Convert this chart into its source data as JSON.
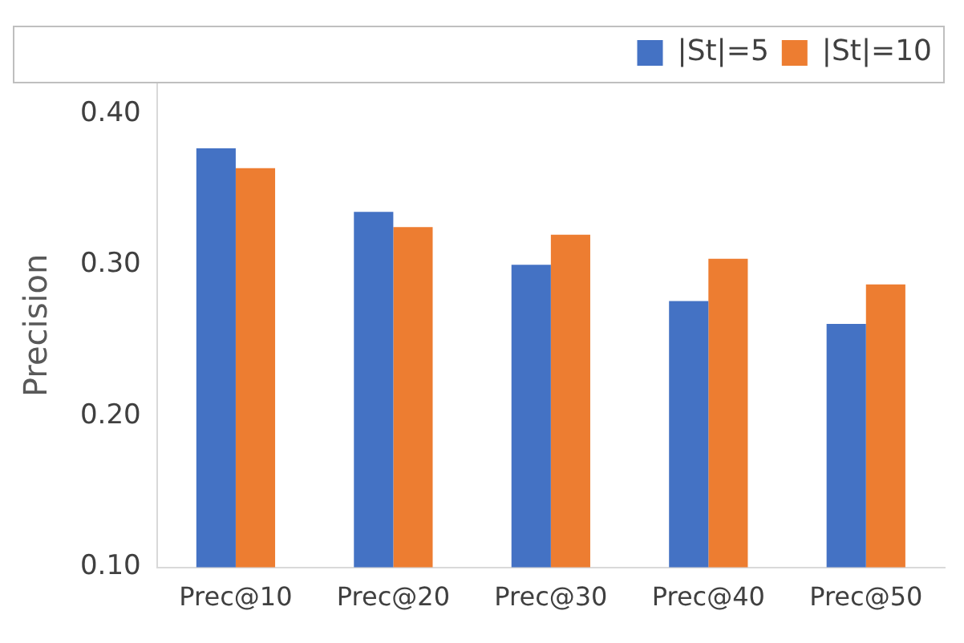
{
  "chart_data": {
    "type": "bar",
    "ylabel": "Precision",
    "categories": [
      "Prec@10",
      "Prec@20",
      "Prec@30",
      "Prec@40",
      "Prec@50"
    ],
    "series": [
      {
        "name": "|St|=5",
        "color": "#4472c4",
        "values": [
          0.377,
          0.335,
          0.3,
          0.276,
          0.261
        ]
      },
      {
        "name": "|St|=10",
        "color": "#ed7d31",
        "values": [
          0.364,
          0.325,
          0.32,
          0.304,
          0.287
        ]
      }
    ],
    "ylim": [
      0.1,
      0.42
    ],
    "yticks": [
      {
        "value": 0.1,
        "label": "0.10"
      },
      {
        "value": 0.2,
        "label": "0.20"
      },
      {
        "value": 0.3,
        "label": "0.30"
      },
      {
        "value": 0.4,
        "label": "0.40"
      }
    ],
    "grid": false,
    "legend": "top right"
  }
}
